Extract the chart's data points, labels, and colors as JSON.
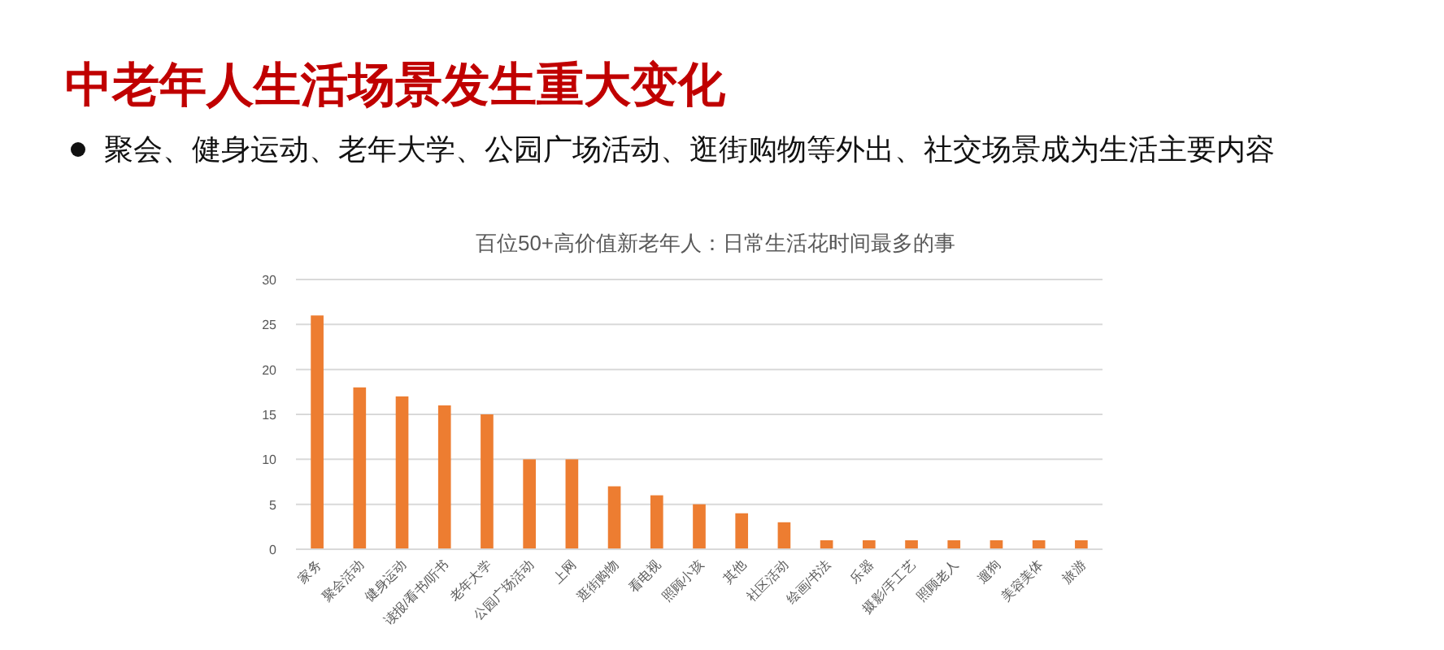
{
  "chart_data": {
    "type": "bar",
    "title": "百位50+高价值新老年人：日常生活花时间最多的事",
    "annotations": [
      "中老年人生活场景发生重大变化",
      "聚会、健身运动、老年大学、公园广场活动、逛街购物等外出、社交场景成为生活主要内容"
    ],
    "categories": [
      "家务",
      "聚会活动",
      "健身运动",
      "读报/看书/听书",
      "老年大学",
      "公园广场活动",
      "上网",
      "逛街购物",
      "看电视",
      "照顾小孩",
      "其他",
      "社区活动",
      "绘画/书法",
      "乐器",
      "摄影/手工艺",
      "照顾老人",
      "遛狗",
      "美容美体",
      "旅游"
    ],
    "values": [
      26,
      18,
      17,
      16,
      15,
      10,
      10,
      7,
      6,
      5,
      4,
      3,
      1,
      1,
      1,
      1,
      1,
      1,
      1
    ],
    "color": "#ed7d31",
    "ylim": [
      0,
      30
    ],
    "yticks": [
      0,
      5,
      10,
      15,
      20,
      25,
      30
    ],
    "grid": "y"
  }
}
